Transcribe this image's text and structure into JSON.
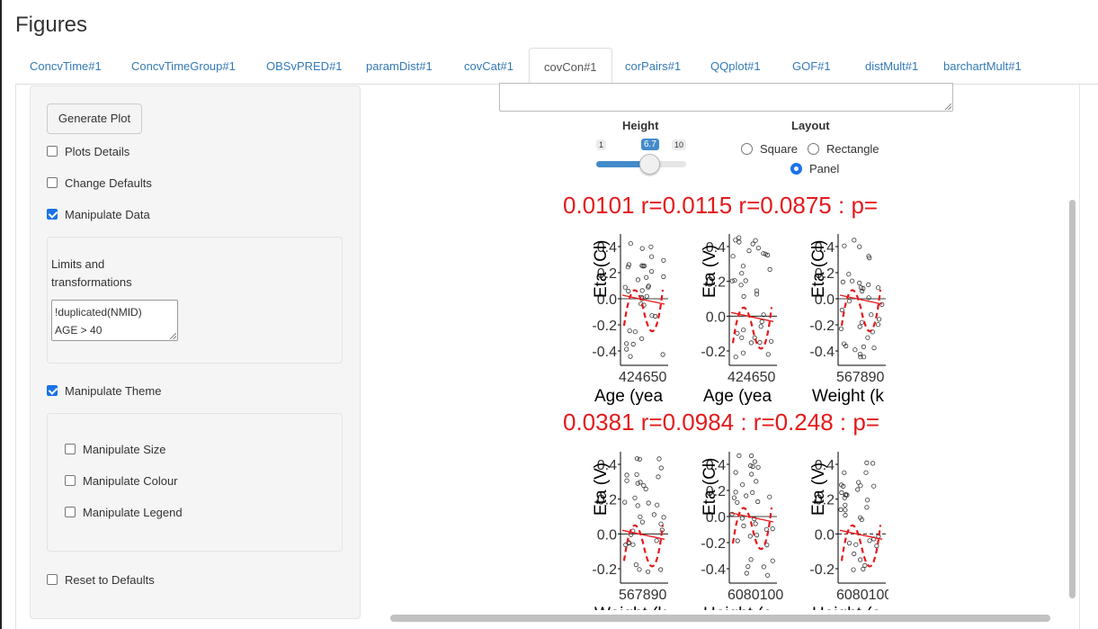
{
  "page": {
    "title": "Figures"
  },
  "tabs": [
    {
      "label": "ConcvTime#1"
    },
    {
      "label": "ConcvTimeGroup#1"
    },
    {
      "label": "OBSvPRED#1"
    },
    {
      "label": "paramDist#1"
    },
    {
      "label": "covCat#1"
    },
    {
      "label": "covCon#1",
      "active": true
    },
    {
      "label": "corPairs#1"
    },
    {
      "label": "QQplot#1"
    },
    {
      "label": "GOF#1"
    },
    {
      "label": "distMult#1"
    },
    {
      "label": "barchartMult#1"
    }
  ],
  "sidebar": {
    "generate_button": "Generate Plot",
    "plots_details": {
      "label": "Plots Details",
      "checked": false
    },
    "change_defaults": {
      "label": "Change Defaults",
      "checked": false
    },
    "manipulate_data": {
      "label": "Manipulate Data",
      "checked": true
    },
    "limits_label": "Limits and transformations",
    "limits_lines": [
      "!duplicated(NMID)",
      "AGE > 40"
    ],
    "manipulate_theme": {
      "label": "Manipulate Theme",
      "checked": true
    },
    "manipulate_size": {
      "label": "Manipulate Size",
      "checked": false
    },
    "manipulate_colour": {
      "label": "Manipulate Colour",
      "checked": false
    },
    "manipulate_legend": {
      "label": "Manipulate Legend",
      "checked": false
    },
    "reset_defaults": {
      "label": "Reset to Defaults",
      "checked": false
    }
  },
  "controls": {
    "height_label": "Height",
    "height_min": "1",
    "height_max": "10",
    "height_value": "6.7",
    "height_fraction": 0.63,
    "layout_label": "Layout",
    "layout_options": [
      "Square",
      "Rectangle",
      "Panel"
    ],
    "layout_selected": "Panel"
  },
  "colors": {
    "accent": "#428bca",
    "link": "#337ab7",
    "trend": "#e41a1c"
  },
  "chart_data": {
    "type": "scatter",
    "panels": [
      {
        "title": "0.0101 : p=",
        "ylabel": "Eta (Cl)",
        "xlabel": "Age (yea",
        "yticks": [
          "0.4",
          "0.2",
          "0.0",
          "-0.2",
          "-0.4"
        ],
        "xticks": "424650"
      },
      {
        "title": "0.0115 : p=",
        "ylabel": "Eta (V)",
        "xlabel": "Age (yea",
        "yticks": [
          "0.4",
          "0.2",
          "0.0",
          "-0.2"
        ],
        "xticks": "424650"
      },
      {
        "title": "0.0875 : p=",
        "ylabel": "Eta (Cl)",
        "xlabel": "Weight (k",
        "yticks": [
          "0.4",
          "0.2",
          "0.0",
          "-0.2",
          "-0.4"
        ],
        "xticks": "567890"
      },
      {
        "title": "0.0381 : p=",
        "ylabel": "Eta (V)",
        "xlabel": "Weight (k",
        "yticks": [
          "0.4",
          "0.2",
          "0.0",
          "-0.2"
        ],
        "xticks": "567890"
      },
      {
        "title": "0.0984 : p=",
        "ylabel": "Eta (Cl)",
        "xlabel": "Height (c",
        "yticks": [
          "0.4",
          "0.2",
          "0.0",
          "-0.2",
          "-0.4"
        ],
        "xticks": "6080100"
      },
      {
        "title": "0.248 : p=",
        "ylabel": "Eta (V)",
        "xlabel": "Height (c",
        "yticks": [
          "0.4",
          "0.2",
          "0.0",
          "-0.2"
        ],
        "xticks": "6080100"
      }
    ],
    "row_titles": [
      "0.0101 r=0.0115 r=0.0875 : p=",
      "0.0381 r=0.0984 : r=0.248 : p="
    ]
  }
}
